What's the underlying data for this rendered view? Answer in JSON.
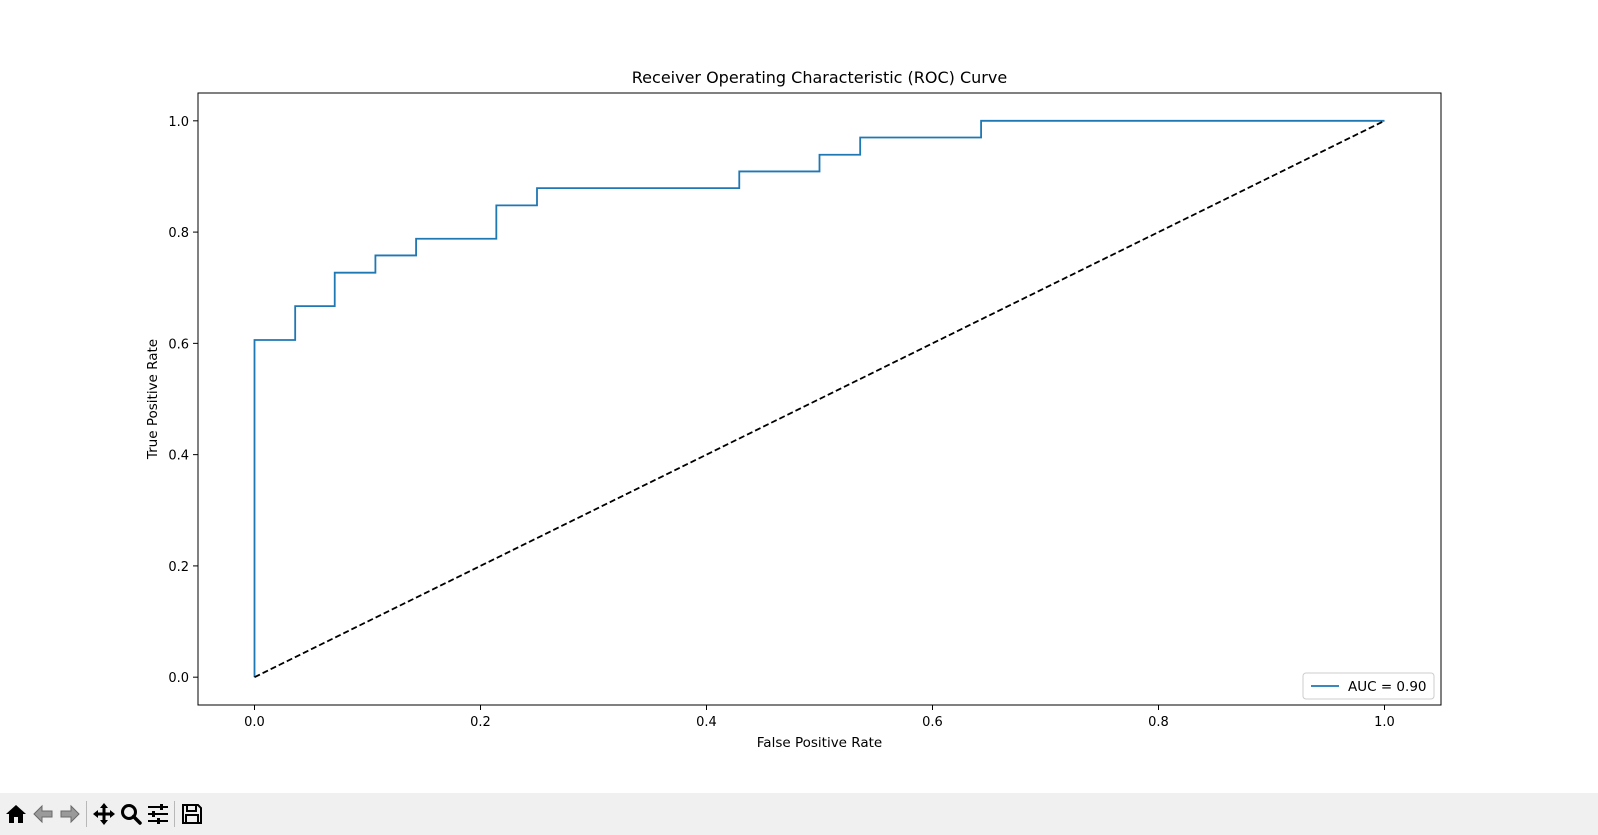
{
  "chart_data": {
    "type": "line",
    "title": "Receiver Operating Characteristic (ROC) Curve",
    "xlabel": "False Positive Rate",
    "ylabel": "True Positive Rate",
    "xlim": [
      -0.05,
      1.05
    ],
    "ylim": [
      -0.05,
      1.05
    ],
    "xticks": [
      0.0,
      0.2,
      0.4,
      0.6,
      0.8,
      1.0
    ],
    "yticks": [
      0.0,
      0.2,
      0.4,
      0.6,
      0.8,
      1.0
    ],
    "xtick_labels": [
      "0.0",
      "0.2",
      "0.4",
      "0.6",
      "0.8",
      "1.0"
    ],
    "ytick_labels": [
      "0.0",
      "0.2",
      "0.4",
      "0.6",
      "0.8",
      "1.0"
    ],
    "grid": false,
    "legend_position": "lower-right",
    "series": [
      {
        "name": "AUC = 0.90",
        "color": "#1f77b4",
        "style": "solid",
        "x": [
          0.0,
          0.0,
          0.036,
          0.036,
          0.071,
          0.071,
          0.107,
          0.107,
          0.143,
          0.143,
          0.214,
          0.214,
          0.25,
          0.25,
          0.429,
          0.429,
          0.5,
          0.5,
          0.536,
          0.536,
          0.643,
          0.643,
          1.0
        ],
        "y": [
          0.0,
          0.606,
          0.606,
          0.667,
          0.667,
          0.727,
          0.727,
          0.758,
          0.758,
          0.788,
          0.788,
          0.848,
          0.848,
          0.879,
          0.879,
          0.909,
          0.909,
          0.939,
          0.939,
          0.97,
          0.97,
          1.0,
          1.0
        ]
      },
      {
        "color": "#000000",
        "style": "dashed",
        "x": [
          0.0,
          1.0
        ],
        "y": [
          0.0,
          1.0
        ]
      }
    ]
  },
  "toolbar": {
    "buttons": [
      {
        "name": "home-button",
        "icon": "home-icon"
      },
      {
        "name": "back-button",
        "icon": "arrow-left-icon"
      },
      {
        "name": "forward-button",
        "icon": "arrow-right-icon"
      },
      {
        "name": "pan-button",
        "icon": "move-icon"
      },
      {
        "name": "zoom-button",
        "icon": "magnifier-icon"
      },
      {
        "name": "configure-subplots-button",
        "icon": "sliders-icon"
      },
      {
        "name": "save-button",
        "icon": "floppy-disk-icon"
      }
    ]
  }
}
